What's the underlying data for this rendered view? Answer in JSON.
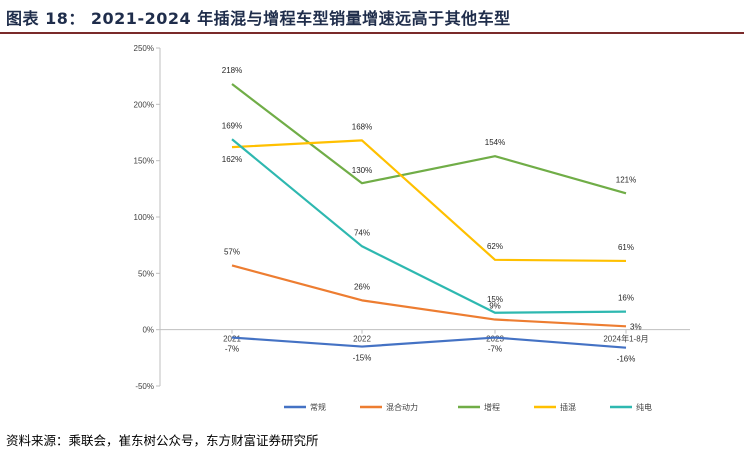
{
  "title": "图表 18： 2021-2024 年插混与增程车型销量增速远高于其他车型",
  "source": "资料来源：乘联会，崔东树公众号，东方财富证券研究所",
  "colors": {
    "常规": "#4472C4",
    "混合动力": "#ED7D31",
    "增程": "#70AD47",
    "插混": "#FFC000",
    "纯电": "#2EB8B0",
    "axis": "#bfbfbf",
    "title": "#1f2d4b",
    "rule": "#7a2a2a"
  },
  "chart_data": {
    "type": "line",
    "title": "",
    "xlabel": "",
    "ylabel": "",
    "ylim": [
      -50,
      250
    ],
    "yticks": [
      -50,
      0,
      50,
      100,
      150,
      200,
      250
    ],
    "ytick_labels": [
      "-50%",
      "0%",
      "50%",
      "100%",
      "150%",
      "200%",
      "250%"
    ],
    "categories": [
      "2021",
      "2022",
      "2023",
      "2024年1-8月"
    ],
    "legend_position": "bottom",
    "series": [
      {
        "name": "常规",
        "values": [
          -7,
          -15,
          -7,
          -16
        ],
        "labels": [
          "-7%",
          "-15%",
          "-7%",
          "-16%"
        ]
      },
      {
        "name": "混合动力",
        "values": [
          57,
          26,
          9,
          3
        ],
        "labels": [
          "57%",
          "26%",
          "9%",
          "3%"
        ]
      },
      {
        "name": "增程",
        "values": [
          218,
          130,
          154,
          121
        ],
        "labels": [
          "218%",
          "130%",
          "154%",
          "121%"
        ]
      },
      {
        "name": "插混",
        "values": [
          162,
          168,
          62,
          61
        ],
        "labels": [
          "162%",
          "168%",
          "62%",
          "61%"
        ]
      },
      {
        "name": "纯电",
        "values": [
          169,
          74,
          15,
          16
        ],
        "labels": [
          "169%",
          "74%",
          "15%",
          "16%"
        ]
      }
    ]
  }
}
